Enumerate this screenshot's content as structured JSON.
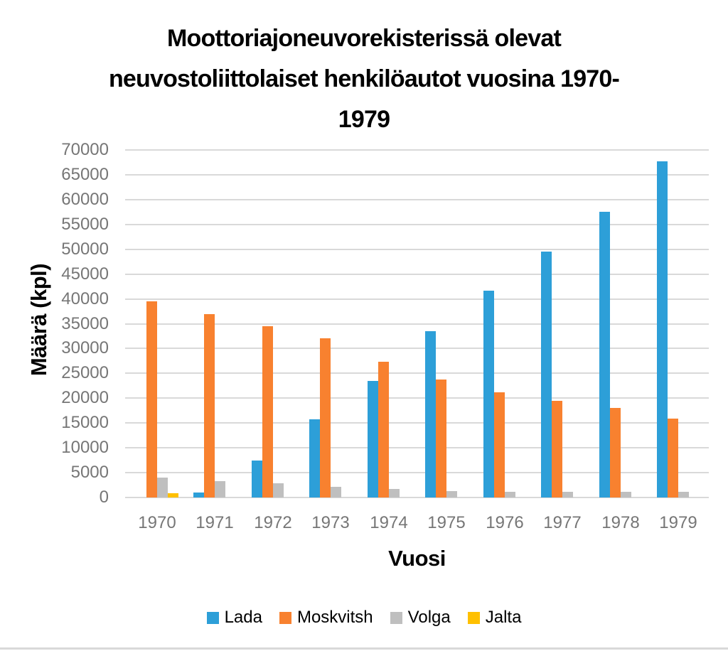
{
  "title": {
    "line1": "Moottoriajoneuvorekisterissä olevat",
    "line2": "neuvostoliittolaiset henkilöautot vuosina 1970-",
    "line3": "1979"
  },
  "chart_data": {
    "type": "bar",
    "title": "Moottoriajoneuvorekisterissä olevat neuvostoliittolaiset henkilöautot vuosina 1970-1979",
    "xlabel": "Vuosi",
    "ylabel": "Määrä (kpl)",
    "ylim": [
      0,
      70000
    ],
    "ytick_step": 5000,
    "y_tick_labels": [
      "0",
      "5000",
      "10000",
      "15000",
      "20000",
      "25000",
      "30000",
      "35000",
      "40000",
      "45000",
      "50000",
      "55000",
      "60000",
      "65000",
      "70000"
    ],
    "categories": [
      "1970",
      "1971",
      "1972",
      "1973",
      "1974",
      "1975",
      "1976",
      "1977",
      "1978",
      "1979"
    ],
    "series": [
      {
        "name": "Lada",
        "color": "#2D9FD8",
        "values": [
          0,
          1000,
          7500,
          15700,
          23500,
          33500,
          41700,
          49500,
          57500,
          67700
        ]
      },
      {
        "name": "Moskvitsh",
        "color": "#F8812F",
        "values": [
          39500,
          36900,
          34500,
          32000,
          27300,
          23800,
          21200,
          19400,
          18000,
          15900
        ]
      },
      {
        "name": "Volga",
        "color": "#BFBFBF",
        "values": [
          4000,
          3300,
          2800,
          2200,
          1700,
          1300,
          1200,
          1200,
          1200,
          1100
        ]
      },
      {
        "name": "Jalta",
        "color": "#FFC000",
        "values": [
          800,
          0,
          0,
          0,
          0,
          0,
          0,
          0,
          0,
          0
        ]
      }
    ],
    "grid": true,
    "gridline_color": "#D9D9D9",
    "tick_label_color": "#767676",
    "legend_position": "bottom"
  }
}
